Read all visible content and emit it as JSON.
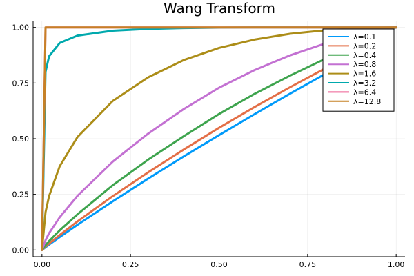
{
  "chart_data": {
    "type": "line",
    "title": "Wang Transform",
    "xlabel": "",
    "ylabel": "",
    "xlim": [
      0,
      1
    ],
    "ylim": [
      0,
      1
    ],
    "x_ticks": [
      0,
      0.25,
      0.5,
      0.75,
      1
    ],
    "y_ticks": [
      0,
      0.25,
      0.5,
      0.75,
      1
    ],
    "x_tick_labels": [
      "0.00",
      "0.25",
      "0.50",
      "0.75",
      "1.00"
    ],
    "y_tick_labels": [
      "0.00",
      "0.25",
      "0.50",
      "0.75",
      "1.00"
    ],
    "grid": true,
    "legend_position": "top-right",
    "x": [
      0,
      0.01,
      0.02,
      0.05,
      0.1,
      0.2,
      0.3,
      0.4,
      0.5,
      0.6,
      0.7,
      0.8,
      0.9,
      0.95,
      0.99,
      1
    ],
    "series": [
      {
        "name": "λ=0.1",
        "color": "#009AFA",
        "values": [
          0,
          0.012,
          0.024,
          0.058,
          0.113,
          0.219,
          0.321,
          0.42,
          0.516,
          0.61,
          0.702,
          0.791,
          0.878,
          0.92,
          0.993,
          1
        ]
      },
      {
        "name": "λ=0.2",
        "color": "#E36F47",
        "values": [
          0,
          0.015,
          0.029,
          0.067,
          0.128,
          0.242,
          0.349,
          0.451,
          0.549,
          0.642,
          0.731,
          0.816,
          0.896,
          0.934,
          0.994,
          1
        ]
      },
      {
        "name": "λ=0.4",
        "color": "#3EA44E",
        "values": [
          0,
          0.022,
          0.04,
          0.088,
          0.16,
          0.291,
          0.406,
          0.511,
          0.611,
          0.701,
          0.783,
          0.859,
          0.926,
          0.957,
          0.996,
          1
        ]
      },
      {
        "name": "λ=0.8",
        "color": "#C371D2",
        "values": [
          0,
          0.044,
          0.075,
          0.147,
          0.243,
          0.397,
          0.523,
          0.633,
          0.729,
          0.808,
          0.874,
          0.928,
          0.969,
          0.985,
          0.999,
          1
        ]
      },
      {
        "name": "λ=1.6",
        "color": "#AC8D18",
        "values": [
          0,
          0.17,
          0.242,
          0.376,
          0.507,
          0.67,
          0.776,
          0.853,
          0.908,
          0.945,
          0.971,
          0.987,
          0.996,
          0.999,
          1,
          1
        ]
      },
      {
        "name": "λ=3.2",
        "color": "#00A9AD",
        "values": [
          0,
          0.8,
          0.87,
          0.93,
          0.963,
          0.985,
          0.993,
          0.997,
          0.999,
          1,
          1,
          1,
          1,
          1,
          1,
          1
        ]
      },
      {
        "name": "λ=6.4",
        "color": "#ED5D92",
        "values": [
          0,
          1,
          1,
          1,
          1,
          1,
          1,
          1,
          1,
          1,
          1,
          1,
          1,
          1,
          1,
          1
        ]
      },
      {
        "name": "λ=12.8",
        "color": "#C68125",
        "values": [
          0,
          1,
          1,
          1,
          1,
          1,
          1,
          1,
          1,
          1,
          1,
          1,
          1,
          1,
          1,
          1
        ]
      }
    ]
  }
}
